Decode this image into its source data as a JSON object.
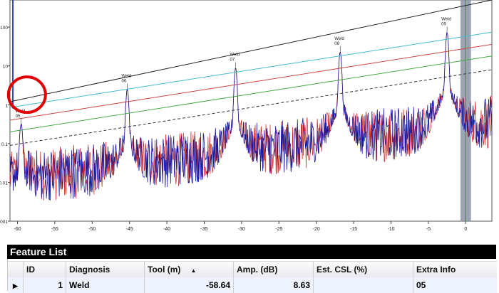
{
  "chart_data": {
    "type": "line",
    "title": "",
    "xlabel": "",
    "ylabel": "",
    "x_scale": "linear",
    "y_scale": "log",
    "xlim": [
      -61,
      3.5
    ],
    "ylim": [
      0.001,
      500
    ],
    "x_ticks": [
      "-60",
      "-55",
      "-50",
      "-45",
      "-40",
      "-35",
      "-30",
      "-25",
      "-20",
      "-15",
      "-10",
      "-5",
      "0"
    ],
    "y_ticks": [
      "100",
      "10",
      "1",
      "0.1",
      "0.01",
      "0.001"
    ],
    "colors": {
      "series_blue": "#1a1aa0",
      "series_red": "#c81e1e",
      "line_black": "#222222",
      "line_cyan": "#44bccc",
      "line_red": "#cc4444",
      "line_green": "#44aa44",
      "line_dashed": "#333333",
      "highlight_circle": "#e00000",
      "marker_band": "#8a94a8"
    },
    "threshold_lines": [
      {
        "color": "line_black",
        "dashed": false,
        "x": [
          -61,
          3.5
        ],
        "y": [
          1.2,
          500
        ]
      },
      {
        "color": "line_cyan",
        "dashed": false,
        "x": [
          -61,
          3.5
        ],
        "y": [
          0.85,
          74
        ]
      },
      {
        "color": "line_red",
        "dashed": false,
        "x": [
          -61,
          3.5
        ],
        "y": [
          0.4,
          36
        ]
      },
      {
        "color": "line_green",
        "dashed": false,
        "x": [
          -61,
          3.5
        ],
        "y": [
          0.2,
          18
        ]
      },
      {
        "color": "line_dashed",
        "dashed": true,
        "x": [
          -61,
          3.5
        ],
        "y": [
          0.09,
          8
        ]
      }
    ],
    "peaks": [
      {
        "x": -59.5,
        "y": 0.3,
        "label": [
          "Weld",
          "05"
        ]
      },
      {
        "x": -45.3,
        "y": 2.4,
        "label": [
          "Weld",
          "06"
        ]
      },
      {
        "x": -30.8,
        "y": 8.5,
        "label": [
          "Weld",
          "07"
        ]
      },
      {
        "x": -16.8,
        "y": 22,
        "label": [
          "Weld",
          "08"
        ]
      },
      {
        "x": -2.5,
        "y": 70,
        "label": [
          "Weld",
          "09"
        ]
      }
    ],
    "highlight": {
      "x": -59.3,
      "y": 1.3
    },
    "marker_band": {
      "x_from": -0.7,
      "x_to": 0.7
    },
    "noise_floor": {
      "start": 0.012,
      "end": 0.35
    }
  },
  "feature_list": {
    "title": "Feature List",
    "columns": [
      "ID",
      "Diagnosis",
      "Tool (m)",
      "Amp. (dB)",
      "Est. CSL (%)",
      "Extra Info"
    ],
    "sort_indicator": "▲",
    "row_pointer": "▶",
    "rows": [
      {
        "id": "1",
        "diagnosis": "Weld",
        "tool": "-58.64",
        "amp": "8.63",
        "csl": "",
        "extra": "05"
      }
    ]
  }
}
